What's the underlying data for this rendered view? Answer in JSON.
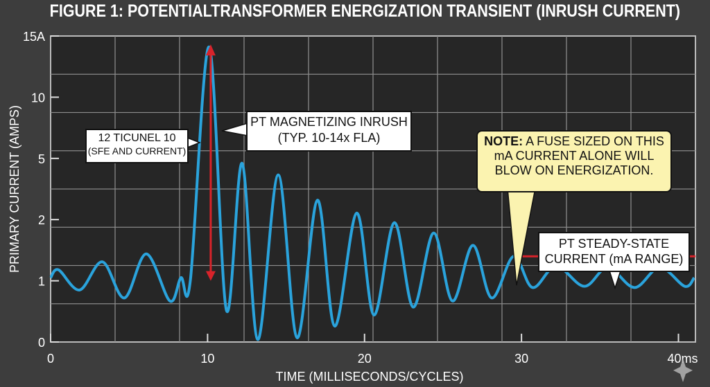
{
  "chart_data": {
    "type": "line",
    "title": "FIGURE 1: POTENTIALTRANSFORMER ENERGIZATION TRANSIENT (INRUSH CURRENT)",
    "xlabel": "TIME (MILLISECONDS/CYCLES)",
    "ylabel": "PRIMARY CURRENT (AMPS)",
    "xlim": [
      0,
      41
    ],
    "ylim": [
      0,
      15
    ],
    "y_scale": "nonlinear (equally spaced labeled ticks 0,1,2,5,10,15)",
    "grid": true,
    "x_ticks": [
      {
        "value": 0,
        "label": "0"
      },
      {
        "value": 10,
        "label": "10"
      },
      {
        "value": 20,
        "label": "20"
      },
      {
        "value": 30,
        "label": "30"
      },
      {
        "value": 40,
        "label": "40ms"
      }
    ],
    "y_ticks": [
      {
        "value": 0,
        "label": "0"
      },
      {
        "value": 1,
        "label": "1"
      },
      {
        "value": 2,
        "label": "2"
      },
      {
        "value": 5,
        "label": "5"
      },
      {
        "value": 10,
        "label": "10"
      },
      {
        "value": 15,
        "label": "15A"
      }
    ],
    "series": [
      {
        "color": "#2aa3dc",
        "x": [
          0,
          0.5,
          1.85,
          3.3,
          4.7,
          6.1,
          7.6,
          8.3,
          8.9,
          10.1,
          11.2,
          12.2,
          13.2,
          14.5,
          15.7,
          17.0,
          18.1,
          19.5,
          20.6,
          21.9,
          23.1,
          24.4,
          25.6,
          26.9,
          28.1,
          29.5,
          30.7,
          32.2,
          34.0,
          35.5,
          37.2,
          38.8,
          40.4,
          41.0
        ],
        "y": [
          1.05,
          1.18,
          0.85,
          1.31,
          0.72,
          1.44,
          0.67,
          1.05,
          1.0,
          14.1,
          0.52,
          4.76,
          0.04,
          4.19,
          0.07,
          2.95,
          0.26,
          2.32,
          0.44,
          1.95,
          0.57,
          1.78,
          0.67,
          1.58,
          0.72,
          1.4,
          0.89,
          1.24,
          0.91,
          1.22,
          0.89,
          1.22,
          0.91,
          1.05
        ]
      }
    ],
    "markers": {
      "inrush_arrow": {
        "x": 10.2,
        "y_from": 1.0,
        "y_to": 14.2,
        "color": "#d8232a"
      },
      "steady_state_line": {
        "x_from": 29.6,
        "x_to": 41,
        "y": 1.4,
        "color": "#d8232a"
      }
    },
    "annotations": {
      "left_box": [
        "12 TICUNEL 10",
        "(SFE AND CURRENT)"
      ],
      "inrush_box": [
        "PT MAGNETIZING INRUSH",
        "(TYP. 10-14x FLA)"
      ],
      "note_bold": "NOTE:",
      "note_lines": [
        "A FUSE SIZED ON THIS",
        "mA CURRENT ALONE WILL",
        "BLOW ON ENERGIZATION."
      ],
      "steady_box": [
        "PT STEADY-STATE",
        "CURRENT (mA RANGE)"
      ]
    },
    "colors": {
      "background": "#3d3d3d",
      "plot_bg": "#262626",
      "grid": "#8a8a8a",
      "note_bg": "#fbf3b0"
    }
  }
}
